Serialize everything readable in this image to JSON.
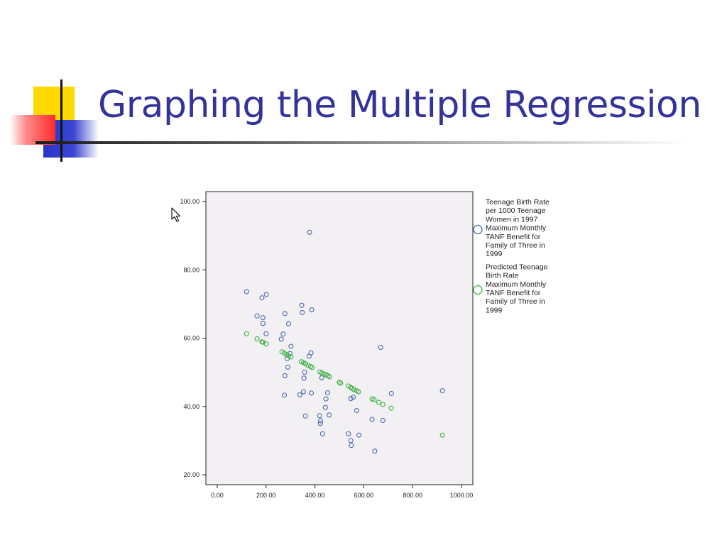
{
  "slide": {
    "title": "Graphing the Multiple Regression"
  },
  "colors": {
    "title": "#333399",
    "observed_marker": "#4a6aa8",
    "predicted_marker": "#3cb043",
    "plot_background": "#f3f0f3",
    "logo_yellow": "#ffd800",
    "logo_blue": "#2a35c8",
    "logo_red": "#ff3030"
  },
  "icons": {
    "cursor": "mouse-pointer-icon"
  },
  "chart_data": {
    "type": "scatter",
    "title": "",
    "xlabel": "",
    "ylabel": "",
    "xlim": [
      0,
      1000
    ],
    "ylim": [
      20,
      100
    ],
    "x_ticks": [
      "0.00",
      "200.00",
      "400.00",
      "600.00",
      "800.00",
      "1000.00"
    ],
    "y_ticks": [
      "20.00",
      "40.00",
      "60.00",
      "80.00",
      "100.00"
    ],
    "legend_position": "right",
    "grid": false,
    "series": [
      {
        "name": "Teenage Birth Rate per 1000 Teenage Women in 1997 Maximum Monthly TANF Benefit for Family of Three in 1999",
        "legend_lines": [
          "Teenage Birth Rate",
          "per 1000 Teenage",
          "Women in 1997",
          " Maximum Monthly",
          "TANF Benefit for",
          "Family of Three in",
          "1999"
        ],
        "marker": "circle",
        "color": "#4a6aa8",
        "points": [
          [
            120,
            73.6
          ],
          [
            163,
            66.5
          ],
          [
            183,
            71.8
          ],
          [
            187,
            66.0
          ],
          [
            187,
            64.3
          ],
          [
            201,
            72.8
          ],
          [
            200,
            61.3
          ],
          [
            277,
            67.2
          ],
          [
            270,
            61.2
          ],
          [
            262,
            59.7
          ],
          [
            292,
            64.2
          ],
          [
            302,
            57.6
          ],
          [
            298,
            55.5
          ],
          [
            286,
            54.0
          ],
          [
            289,
            51.5
          ],
          [
            277,
            49.0
          ],
          [
            275,
            43.3
          ],
          [
            338,
            43.4
          ],
          [
            353,
            44.3
          ],
          [
            348,
            67.5
          ],
          [
            346,
            69.6
          ],
          [
            387,
            68.3
          ],
          [
            378,
            91.0
          ],
          [
            384,
            55.7
          ],
          [
            376,
            54.7
          ],
          [
            358,
            50.0
          ],
          [
            355,
            48.3
          ],
          [
            428,
            48.4
          ],
          [
            385,
            43.9
          ],
          [
            452,
            44.0
          ],
          [
            445,
            42.2
          ],
          [
            443,
            39.7
          ],
          [
            458,
            37.5
          ],
          [
            419,
            37.3
          ],
          [
            361,
            37.2
          ],
          [
            423,
            35.8
          ],
          [
            422,
            35.0
          ],
          [
            431,
            32.0
          ],
          [
            537,
            32.0
          ],
          [
            580,
            31.6
          ],
          [
            547,
            30.0
          ],
          [
            549,
            28.6
          ],
          [
            645,
            26.9
          ],
          [
            547,
            42.3
          ],
          [
            557,
            42.7
          ],
          [
            571,
            38.8
          ],
          [
            634,
            36.2
          ],
          [
            678,
            35.9
          ],
          [
            713,
            43.8
          ],
          [
            669,
            57.3
          ],
          [
            922,
            44.6
          ]
        ]
      },
      {
        "name": "Predicted Teenage Birth Rate Maximum Monthly TANF Benefit for Family of Three in 1999",
        "legend_lines": [
          "Predicted Teenage",
          "Birth Rate",
          " Maximum Monthly",
          "TANF Benefit for",
          "Family of Three in",
          "1999"
        ],
        "marker": "circle",
        "color": "#3cb043",
        "points": [
          [
            120,
            61.3
          ],
          [
            163,
            59.8
          ],
          [
            183,
            58.9
          ],
          [
            187,
            58.8
          ],
          [
            201,
            58.3
          ],
          [
            265,
            56.0
          ],
          [
            275,
            55.6
          ],
          [
            284,
            55.2
          ],
          [
            292,
            54.8
          ],
          [
            302,
            54.5
          ],
          [
            345,
            53.1
          ],
          [
            353,
            52.8
          ],
          [
            362,
            52.5
          ],
          [
            372,
            52.0
          ],
          [
            382,
            51.7
          ],
          [
            388,
            51.4
          ],
          [
            420,
            50.1
          ],
          [
            428,
            49.8
          ],
          [
            437,
            49.5
          ],
          [
            446,
            49.3
          ],
          [
            453,
            49.0
          ],
          [
            459,
            48.7
          ],
          [
            500,
            47.1
          ],
          [
            505,
            46.8
          ],
          [
            537,
            46.0
          ],
          [
            546,
            45.6
          ],
          [
            552,
            45.3
          ],
          [
            560,
            44.9
          ],
          [
            571,
            44.6
          ],
          [
            578,
            44.3
          ],
          [
            634,
            42.2
          ],
          [
            642,
            42.0
          ],
          [
            661,
            41.2
          ],
          [
            678,
            40.6
          ],
          [
            712,
            39.5
          ],
          [
            922,
            31.6
          ]
        ]
      }
    ]
  }
}
